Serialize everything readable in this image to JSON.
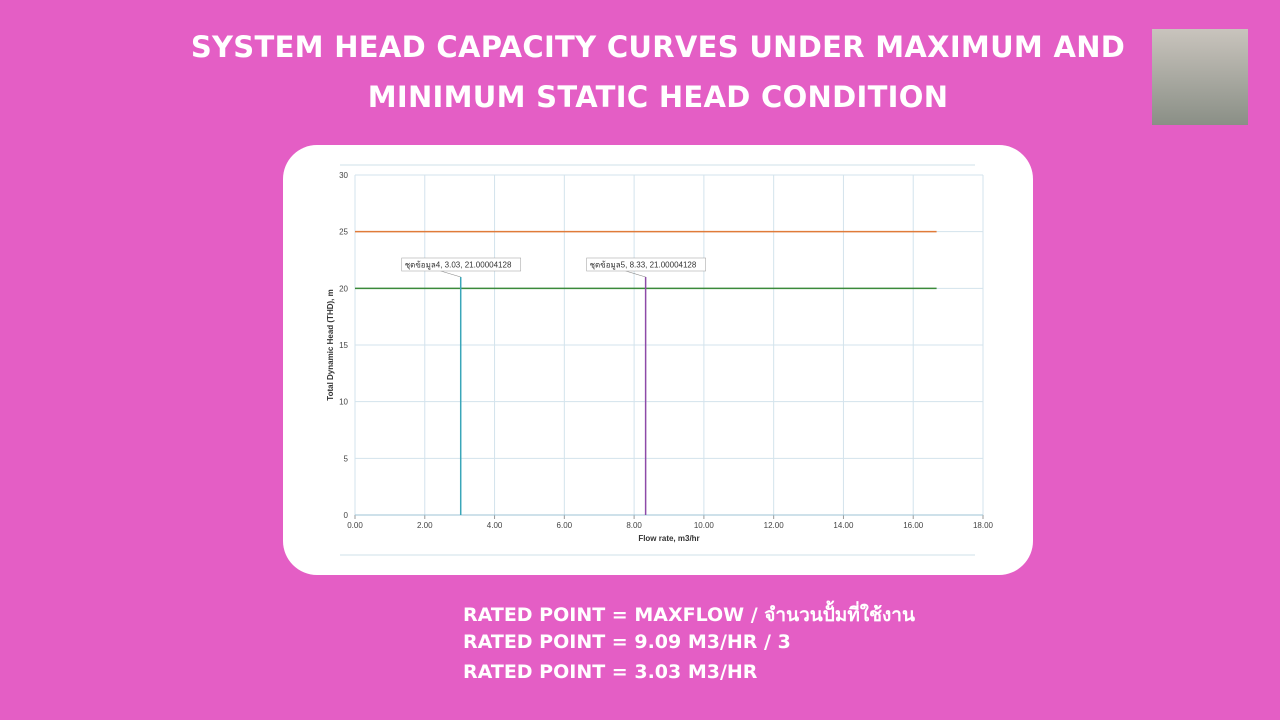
{
  "chart_data": {
    "type": "line",
    "title_lines": [
      "SYSTEM HEAD CAPACITY CURVES UNDER MAXIMUM AND",
      "MINIMUM STATIC HEAD CONDITION"
    ],
    "x_label": "Flow rate, m3/hr",
    "y_label": "Total Dynamic Head (THD), m",
    "xlim": [
      0,
      18
    ],
    "xticks": [
      {
        "value": 0,
        "label": "0.00"
      },
      {
        "value": 2,
        "label": "2.00"
      },
      {
        "value": 4,
        "label": "4.00"
      },
      {
        "value": 6,
        "label": "6.00"
      },
      {
        "value": 8,
        "label": "8.00"
      },
      {
        "value": 10,
        "label": "10.00"
      },
      {
        "value": 12,
        "label": "12.00"
      },
      {
        "value": 14,
        "label": "14.00"
      },
      {
        "value": 16,
        "label": "16.00"
      },
      {
        "value": 18,
        "label": "18.00"
      }
    ],
    "ylim": [
      0,
      30
    ],
    "yticks": [
      0,
      5,
      10,
      15,
      20,
      25,
      30
    ],
    "grid": true,
    "series": [
      {
        "color": "#e07b39",
        "x": [
          0,
          16.67
        ],
        "values": [
          25,
          25
        ]
      },
      {
        "color": "#3a8a3a",
        "x": [
          0,
          16.67
        ],
        "values": [
          20,
          20
        ]
      },
      {
        "color": "#3aa6b9",
        "x": [
          3.03,
          3.03
        ],
        "values": [
          0,
          21
        ]
      },
      {
        "color": "#8e4aa8",
        "x": [
          8.33,
          8.33
        ],
        "values": [
          0,
          21
        ]
      }
    ],
    "annotations": [
      "ชุดข้อมูล4, 3.03, 21.00004128",
      "ชุดข้อมูล5, 8.33, 21.00004128"
    ]
  },
  "notes": [
    "RATED POINT = MAXFLOW / จำนวนปั้มที่ใช้งาน",
    "RATED POINT = 9.09 M3/HR / 3",
    "RATED POINT = 3.03 M3/HR"
  ]
}
